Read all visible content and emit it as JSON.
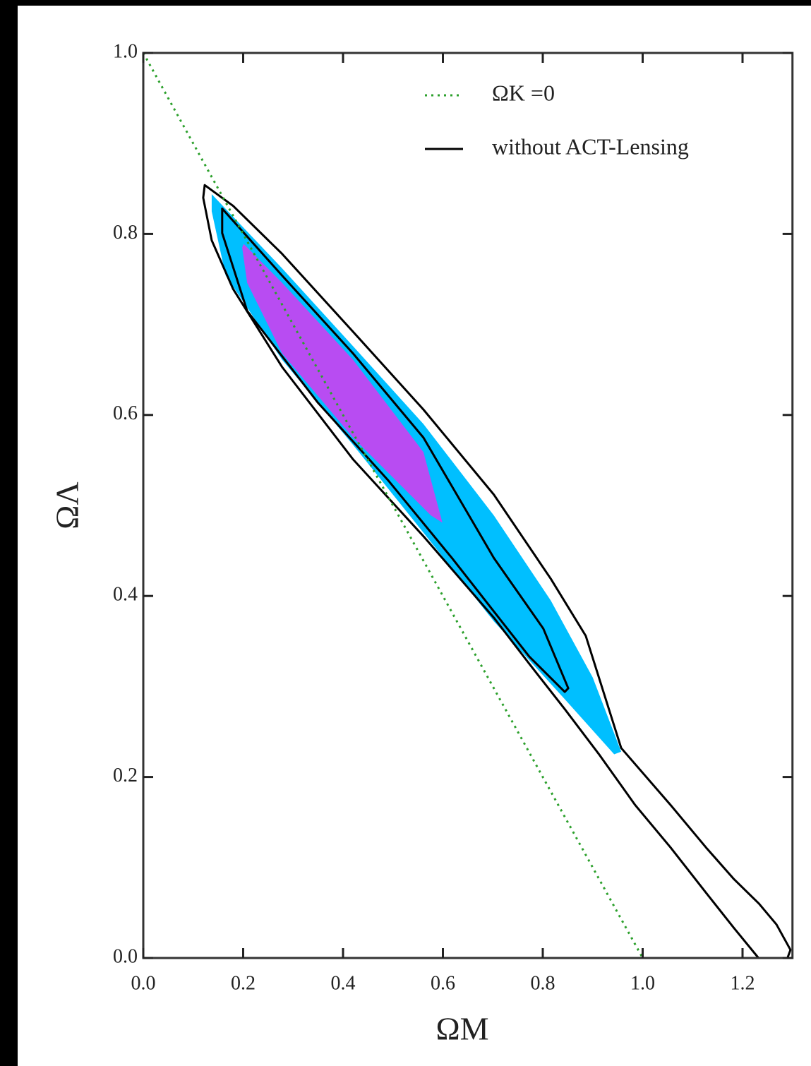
{
  "chart_data": {
    "type": "contour",
    "xlabel": "ΩM",
    "ylabel": "ΩΛ",
    "xlim": [
      0,
      1.3
    ],
    "ylim": [
      0,
      1.0
    ],
    "xticks": [
      {
        "value": 0,
        "label": "0.0"
      },
      0.2,
      0.4,
      0.6,
      0.8,
      {
        "value": 1,
        "label": "1.0"
      },
      1.2
    ],
    "yticks": [
      {
        "value": 0,
        "label": "0.0"
      },
      0.2,
      0.4,
      0.6,
      0.8,
      {
        "value": 1,
        "label": "1.0"
      }
    ],
    "series": [
      {
        "kind": "fill",
        "color": "#00bfff",
        "x": [
          0.137,
          0.278,
          0.42,
          0.561,
          0.702,
          0.816,
          0.9,
          0.957,
          0.943,
          0.844,
          0.702,
          0.561,
          0.42,
          0.278,
          0.165,
          0.137
        ],
        "y": [
          0.844,
          0.762,
          0.676,
          0.59,
          0.489,
          0.395,
          0.31,
          0.228,
          0.225,
          0.286,
          0.372,
          0.47,
          0.567,
          0.661,
          0.754,
          0.825
        ]
      },
      {
        "kind": "fill",
        "color": "#b84cf2",
        "x": [
          0.201,
          0.278,
          0.42,
          0.561,
          0.599,
          0.576,
          0.42,
          0.278,
          0.208,
          0.198
        ],
        "y": [
          0.789,
          0.746,
          0.661,
          0.559,
          0.481,
          0.489,
          0.575,
          0.668,
          0.746,
          0.785
        ]
      },
      {
        "kind": "outline",
        "color": "#000000",
        "x": [
          0.123,
          0.18,
          0.278,
          0.42,
          0.561,
          0.702,
          0.816,
          0.886,
          0.957,
          1.056,
          1.127,
          1.183,
          1.233,
          1.268,
          1.296,
          1.29,
          1.232,
          1.183,
          1.127,
          1.056,
          0.985,
          0.914,
          0.844,
          0.773,
          0.702,
          0.561,
          0.42,
          0.278,
          0.18,
          0.137,
          0.12
        ],
        "y": [
          0.854,
          0.831,
          0.778,
          0.692,
          0.606,
          0.512,
          0.419,
          0.356,
          0.232,
          0.169,
          0.122,
          0.087,
          0.06,
          0.037,
          0.009,
          0,
          0,
          0.033,
          0.072,
          0.122,
          0.169,
          0.224,
          0.275,
          0.325,
          0.376,
          0.466,
          0.551,
          0.653,
          0.739,
          0.793,
          0.84
        ]
      },
      {
        "kind": "outline",
        "color": "#000000",
        "x": [
          0.158,
          0.278,
          0.42,
          0.561,
          0.702,
          0.801,
          0.851,
          0.844,
          0.773,
          0.618,
          0.49,
          0.349,
          0.208,
          0.158
        ],
        "y": [
          0.828,
          0.754,
          0.668,
          0.575,
          0.442,
          0.364,
          0.298,
          0.294,
          0.333,
          0.442,
          0.528,
          0.614,
          0.715,
          0.801
        ]
      },
      {
        "kind": "line",
        "name": "ΩK =0",
        "color": "#2ca02c",
        "style": "dotted",
        "x": [
          0,
          1
        ],
        "y": [
          1,
          0
        ]
      },
      {
        "kind": "legend-only",
        "name": "without ACT-Lensing",
        "color": "#000000"
      }
    ]
  }
}
